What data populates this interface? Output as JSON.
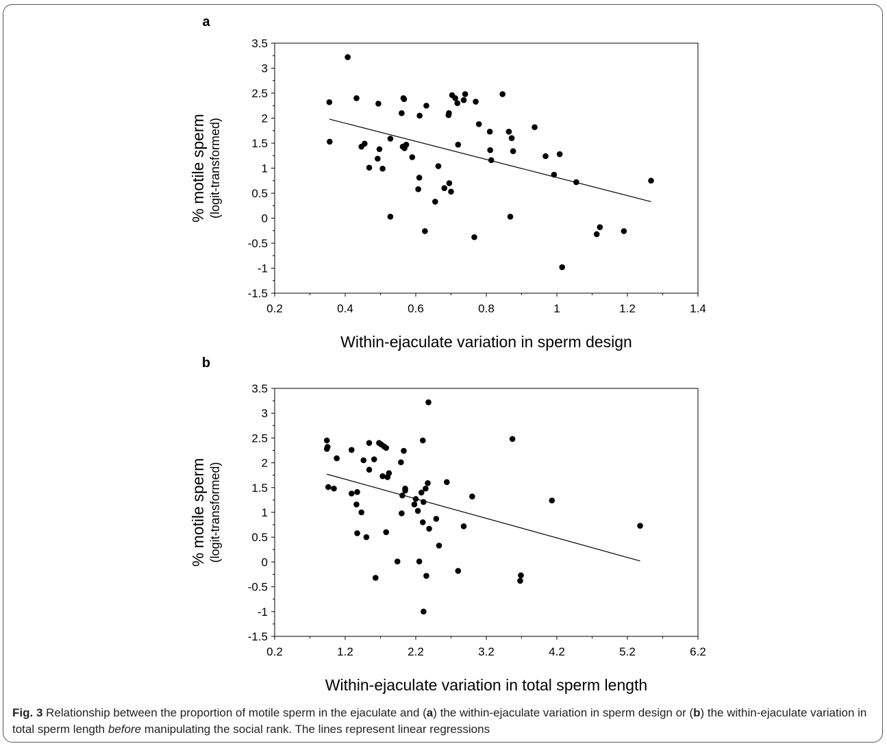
{
  "chart_data": [
    {
      "type": "scatter",
      "panel_label": "a",
      "xlabel": "Within-ejaculate variation in sperm design",
      "ylabel_line1": "% motile sperm",
      "ylabel_line2": "(logit-transformed)",
      "xlim": [
        0.2,
        1.4
      ],
      "ylim": [
        -1.5,
        3.5
      ],
      "xticks": [
        "0.2",
        "0.4",
        "0.6",
        "0.8",
        "1",
        "1.2",
        "1.4"
      ],
      "xtick_values": [
        0.2,
        0.4,
        0.6,
        0.8,
        1.0,
        1.2,
        1.4
      ],
      "yticks": [
        "3.5",
        "3",
        "2.5",
        "2",
        "1.5",
        "1",
        "0.5",
        "0",
        "-0.5",
        "-1",
        "-1.5"
      ],
      "ytick_values": [
        3.5,
        3,
        2.5,
        2,
        1.5,
        1,
        0.5,
        0,
        -0.5,
        -1,
        -1.5
      ],
      "points": [
        [
          0.355,
          2.32
        ],
        [
          0.356,
          1.53
        ],
        [
          0.407,
          3.22
        ],
        [
          0.432,
          2.4
        ],
        [
          0.446,
          1.43
        ],
        [
          0.455,
          1.49
        ],
        [
          0.468,
          1.01
        ],
        [
          0.492,
          1.19
        ],
        [
          0.494,
          2.29
        ],
        [
          0.497,
          1.38
        ],
        [
          0.506,
          0.99
        ],
        [
          0.528,
          1.59
        ],
        [
          0.528,
          0.03
        ],
        [
          0.56,
          2.1
        ],
        [
          0.563,
          1.43
        ],
        [
          0.565,
          2.4
        ],
        [
          0.567,
          2.38
        ],
        [
          0.568,
          1.4
        ],
        [
          0.573,
          1.47
        ],
        [
          0.59,
          1.22
        ],
        [
          0.607,
          0.58
        ],
        [
          0.61,
          0.81
        ],
        [
          0.611,
          2.05
        ],
        [
          0.626,
          -0.26
        ],
        [
          0.63,
          2.25
        ],
        [
          0.655,
          0.33
        ],
        [
          0.664,
          1.04
        ],
        [
          0.681,
          0.6
        ],
        [
          0.693,
          2.06
        ],
        [
          0.694,
          2.1
        ],
        [
          0.695,
          0.7
        ],
        [
          0.7,
          0.53
        ],
        [
          0.703,
          2.46
        ],
        [
          0.712,
          2.4
        ],
        [
          0.718,
          2.3
        ],
        [
          0.72,
          1.47
        ],
        [
          0.736,
          2.36
        ],
        [
          0.74,
          2.48
        ],
        [
          0.766,
          -0.38
        ],
        [
          0.77,
          2.33
        ],
        [
          0.779,
          1.88
        ],
        [
          0.81,
          1.73
        ],
        [
          0.811,
          1.36
        ],
        [
          0.814,
          1.16
        ],
        [
          0.846,
          2.48
        ],
        [
          0.864,
          1.73
        ],
        [
          0.868,
          0.03
        ],
        [
          0.872,
          1.6
        ],
        [
          0.876,
          1.34
        ],
        [
          0.937,
          1.82
        ],
        [
          0.968,
          1.24
        ],
        [
          0.992,
          0.87
        ],
        [
          1.008,
          1.28
        ],
        [
          1.015,
          -0.98
        ],
        [
          1.055,
          0.72
        ],
        [
          1.113,
          -0.32
        ],
        [
          1.122,
          -0.18
        ],
        [
          1.19,
          -0.26
        ],
        [
          1.267,
          0.75
        ]
      ],
      "regression": {
        "x": [
          0.355,
          1.267
        ],
        "y": [
          1.98,
          0.33
        ]
      }
    },
    {
      "type": "scatter",
      "panel_label": "b",
      "xlabel": "Within-ejaculate variation in total sperm length",
      "ylabel_line1": "% motile sperm",
      "ylabel_line2": "(logit-transformed)",
      "xlim": [
        0.2,
        6.2
      ],
      "ylim": [
        -1.5,
        3.5
      ],
      "xticks": [
        "0.2",
        "1.2",
        "2.2",
        "3.2",
        "4.2",
        "5.2",
        "6.2"
      ],
      "xtick_values": [
        0.2,
        1.2,
        2.2,
        3.2,
        4.2,
        5.2,
        6.2
      ],
      "yticks": [
        "3.5",
        "3",
        "2.5",
        "2",
        "1.5",
        "1",
        "0.5",
        "0",
        "-0.5",
        "-1",
        "-1.5"
      ],
      "ytick_values": [
        3.5,
        3,
        2.5,
        2,
        1.5,
        1,
        0.5,
        0,
        -0.5,
        -1,
        -1.5
      ],
      "points": [
        [
          0.94,
          2.45
        ],
        [
          0.94,
          2.28
        ],
        [
          0.95,
          2.32
        ],
        [
          0.96,
          1.51
        ],
        [
          1.04,
          1.48
        ],
        [
          1.08,
          2.09
        ],
        [
          1.29,
          2.26
        ],
        [
          1.29,
          1.38
        ],
        [
          1.36,
          1.16
        ],
        [
          1.37,
          1.41
        ],
        [
          1.37,
          0.58
        ],
        [
          1.43,
          1.0
        ],
        [
          1.46,
          2.05
        ],
        [
          1.5,
          0.5
        ],
        [
          1.54,
          2.4
        ],
        [
          1.54,
          1.86
        ],
        [
          1.61,
          2.07
        ],
        [
          1.63,
          -0.32
        ],
        [
          1.68,
          2.4
        ],
        [
          1.71,
          2.37
        ],
        [
          1.73,
          1.73
        ],
        [
          1.75,
          2.33
        ],
        [
          1.78,
          2.3
        ],
        [
          1.78,
          0.6
        ],
        [
          1.8,
          1.71
        ],
        [
          1.82,
          1.79
        ],
        [
          1.94,
          0.01
        ],
        [
          1.99,
          2.01
        ],
        [
          2.0,
          0.98
        ],
        [
          2.01,
          1.34
        ],
        [
          2.03,
          2.24
        ],
        [
          2.05,
          1.44
        ],
        [
          2.05,
          1.48
        ],
        [
          2.18,
          1.16
        ],
        [
          2.2,
          1.27
        ],
        [
          2.23,
          1.03
        ],
        [
          2.25,
          0.01
        ],
        [
          2.28,
          1.4
        ],
        [
          2.3,
          2.45
        ],
        [
          2.3,
          0.8
        ],
        [
          2.31,
          1.21
        ],
        [
          2.31,
          -1.0
        ],
        [
          2.34,
          1.48
        ],
        [
          2.35,
          -0.28
        ],
        [
          2.37,
          1.59
        ],
        [
          2.38,
          3.22
        ],
        [
          2.39,
          0.67
        ],
        [
          2.49,
          0.87
        ],
        [
          2.53,
          0.33
        ],
        [
          2.64,
          1.61
        ],
        [
          2.8,
          -0.18
        ],
        [
          2.88,
          0.72
        ],
        [
          3.0,
          1.32
        ],
        [
          3.57,
          2.48
        ],
        [
          3.68,
          -0.38
        ],
        [
          3.69,
          -0.27
        ],
        [
          4.13,
          1.24
        ],
        [
          5.38,
          0.73
        ]
      ],
      "regression": {
        "x": [
          0.94,
          5.38
        ],
        "y": [
          1.77,
          0.02
        ]
      }
    }
  ],
  "caption": {
    "fig": "Fig. 3",
    "part1": " Relationship between the proportion of motile sperm in the ejaculate and (",
    "a": "a",
    "part2": ") the within-ejaculate variation in sperm design or (",
    "b": "b",
    "part3": ") the within-ejaculate variation in total sperm length ",
    "italic": "before",
    "part4": " manipulating the social rank. The lines represent linear regressions"
  }
}
